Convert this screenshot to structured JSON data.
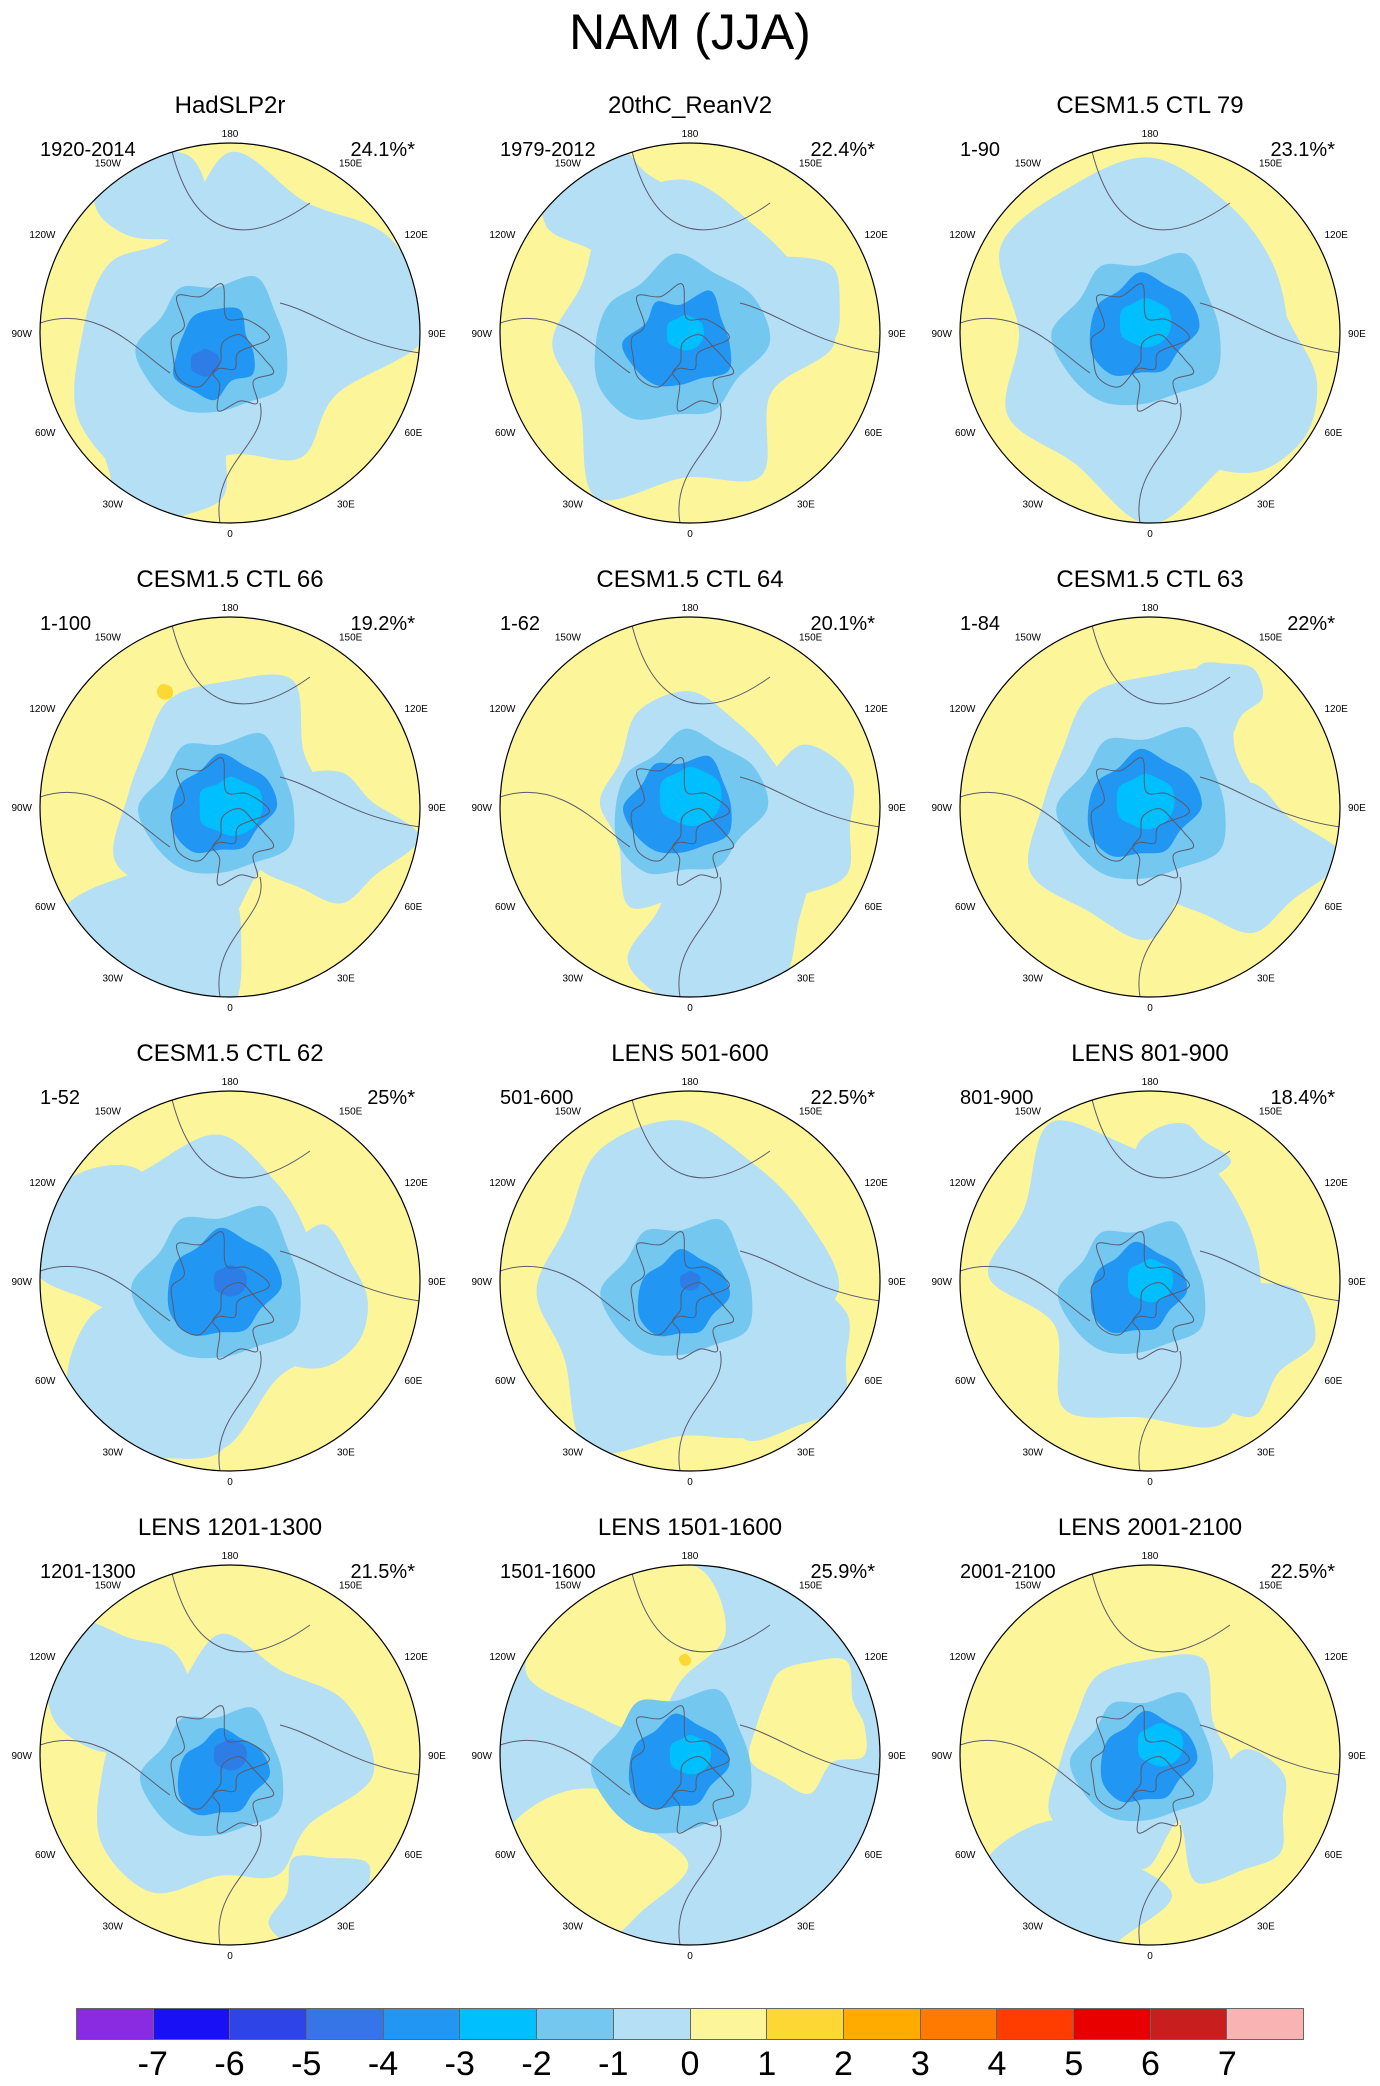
{
  "title": "NAM (JJA)",
  "panels": [
    {
      "title": "HadSLP2r",
      "period": "1920-2014",
      "variance": "24.1%*",
      "hint": "had"
    },
    {
      "title": "20thC_ReanV2",
      "period": "1979-2012",
      "variance": "22.4%*",
      "hint": "rean"
    },
    {
      "title": "CESM1.5 CTL 79",
      "period": "1-90",
      "variance": "23.1%*",
      "hint": "ctl79"
    },
    {
      "title": "CESM1.5 CTL 66",
      "period": "1-100",
      "variance": "19.2%*",
      "hint": "ctl66"
    },
    {
      "title": "CESM1.5 CTL 64",
      "period": "1-62",
      "variance": "20.1%*",
      "hint": "ctl64"
    },
    {
      "title": "CESM1.5 CTL 63",
      "period": "1-84",
      "variance": "22%*",
      "hint": "ctl63"
    },
    {
      "title": "CESM1.5 CTL 62",
      "period": "1-52",
      "variance": "25%*",
      "hint": "ctl62"
    },
    {
      "title": "LENS 501-600",
      "period": "501-600",
      "variance": "22.5%*",
      "hint": "l501"
    },
    {
      "title": "LENS 801-900",
      "period": "801-900",
      "variance": "18.4%*",
      "hint": "l801"
    },
    {
      "title": "LENS 1201-1300",
      "period": "1201-1300",
      "variance": "21.5%*",
      "hint": "l1201"
    },
    {
      "title": "LENS 1501-1600",
      "period": "1501-1600",
      "variance": "25.9%*",
      "hint": "l1501"
    },
    {
      "title": "LENS 2001-2100",
      "period": "2001-2100",
      "variance": "22.5%*",
      "hint": "l2001"
    }
  ],
  "map_labels": {
    "top": "180",
    "bottom": "0",
    "upper_left": "150W",
    "upper_right": "150E",
    "mid_upper_left": "120W",
    "mid_upper_right": "120E",
    "left": "90W",
    "right": "90E",
    "mid_lower_left": "60W",
    "mid_lower_right": "60E",
    "lower_left": "30W",
    "lower_right": "30E"
  },
  "colorbar": {
    "colors": [
      "#8a2be2",
      "#1a10f5",
      "#2f44e6",
      "#3575e8",
      "#2196f3",
      "#00bfff",
      "#74c8f0",
      "#b4dff5",
      "#fdf59a",
      "#fdd835",
      "#ffab00",
      "#ff7a00",
      "#ff3d00",
      "#e80000",
      "#c81e1e",
      "#f9b3b3"
    ],
    "labels": [
      "-7",
      "-6",
      "-5",
      "-4",
      "-3",
      "-2",
      "-1",
      "0",
      "1",
      "2",
      "3",
      "4",
      "5",
      "6",
      "7"
    ]
  }
}
